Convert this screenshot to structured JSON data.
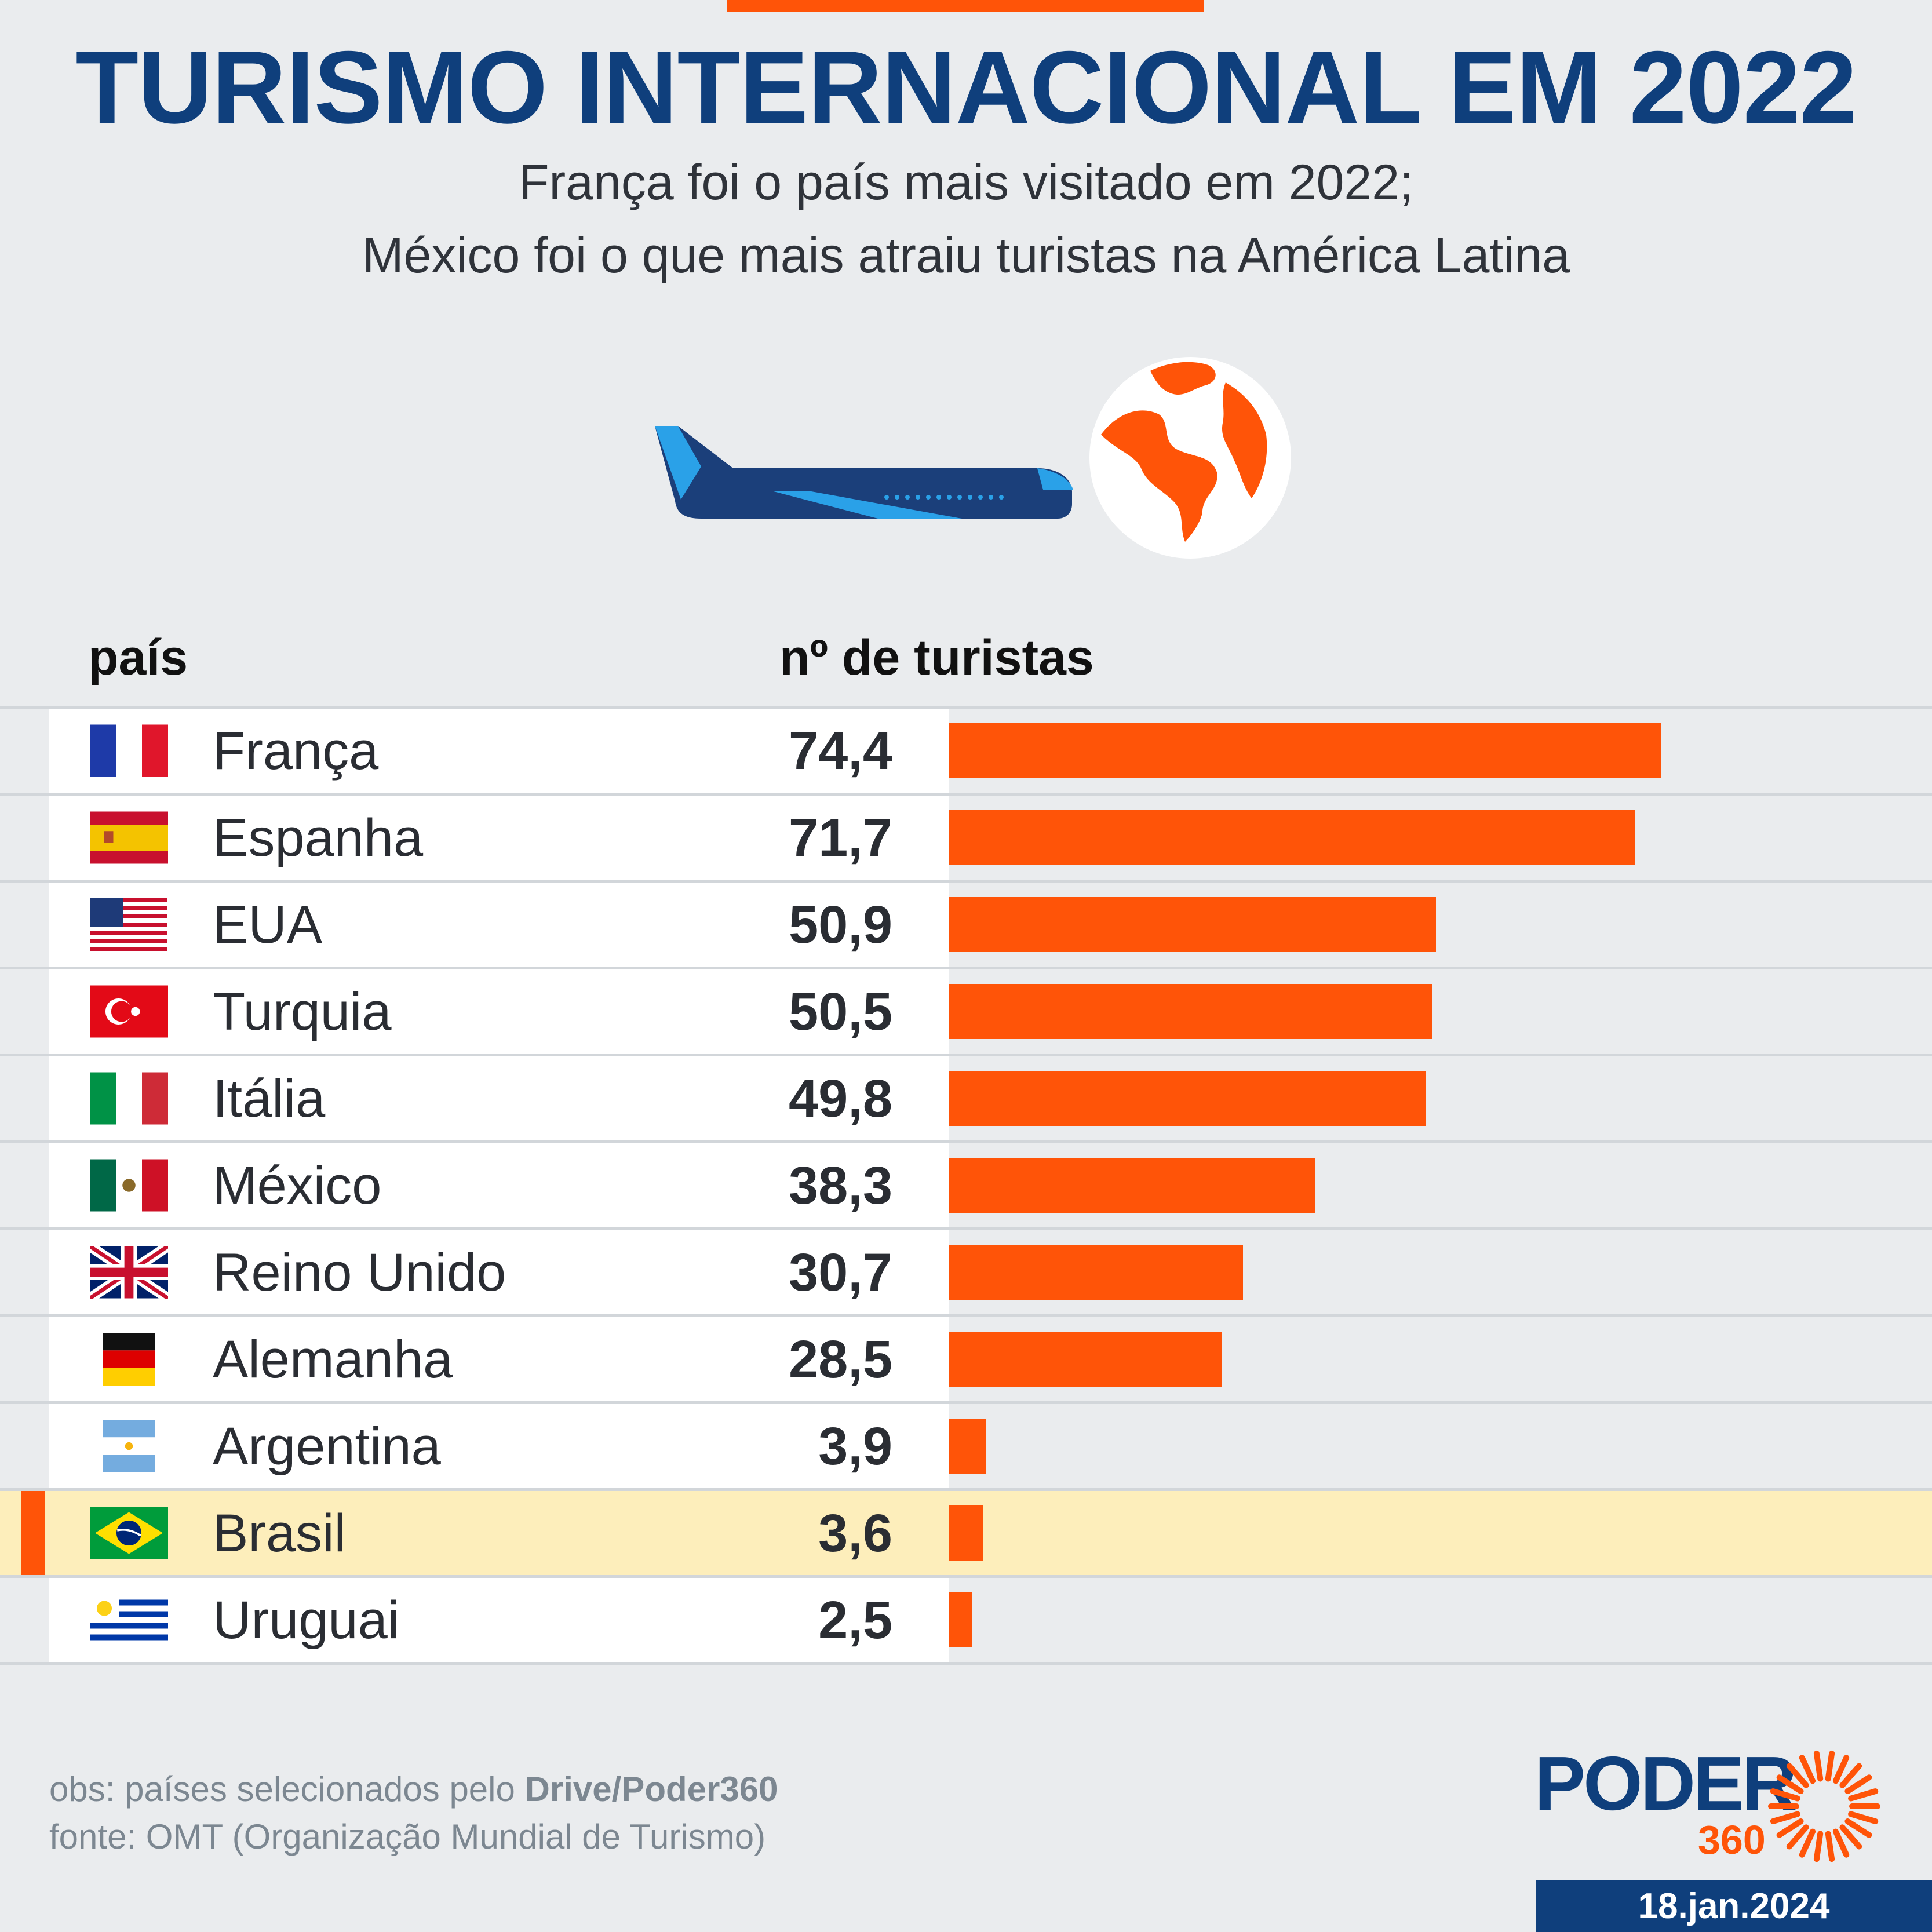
{
  "header": {
    "title": "TURISMO INTERNACIONAL EM 2022",
    "subtitle_line1": "França foi o país mais visitado em 2022;",
    "subtitle_line2": "México foi o que mais atraiu turistas na América Latina"
  },
  "columns": {
    "country": "país",
    "value": "nº de turistas"
  },
  "chart_data": {
    "type": "bar",
    "orientation": "horizontal",
    "title": "TURISMO INTERNACIONAL EM 2022",
    "categories": [
      "França",
      "Espanha",
      "EUA",
      "Turquia",
      "Itália",
      "México",
      "Reino Unido",
      "Alemanha",
      "Argentina",
      "Brasil",
      "Uruguai"
    ],
    "values": [
      74.4,
      71.7,
      50.9,
      50.5,
      49.8,
      38.3,
      30.7,
      28.5,
      3.9,
      3.6,
      2.5
    ],
    "value_labels": [
      "74,4",
      "71,7",
      "50,9",
      "50,5",
      "49,8",
      "38,3",
      "30,7",
      "28,5",
      "3,9",
      "3,6",
      "2,5"
    ],
    "flags": [
      "flag-france-icon",
      "flag-spain-icon",
      "flag-usa-icon",
      "flag-turkey-icon",
      "flag-italy-icon",
      "flag-mexico-icon",
      "flag-uk-icon",
      "flag-germany-icon",
      "flag-argentina-icon",
      "flag-brazil-icon",
      "flag-uruguay-icon"
    ],
    "highlight": "Brasil",
    "xlim": [
      0,
      74.4
    ],
    "bar_color": "#ff5408",
    "highlight_color": "#fdeebb"
  },
  "footer": {
    "obs_prefix": "obs: países selecionados pelo ",
    "obs_bold": "Drive/Poder360",
    "source": "fonte: OMT (Organização Mundial de Turismo)",
    "logo_word": "PODER",
    "logo_number": "360",
    "date": "18.jan.2024"
  },
  "colors": {
    "title": "#0f3f7c",
    "accent": "#ff5408",
    "background": "#eaecee"
  }
}
